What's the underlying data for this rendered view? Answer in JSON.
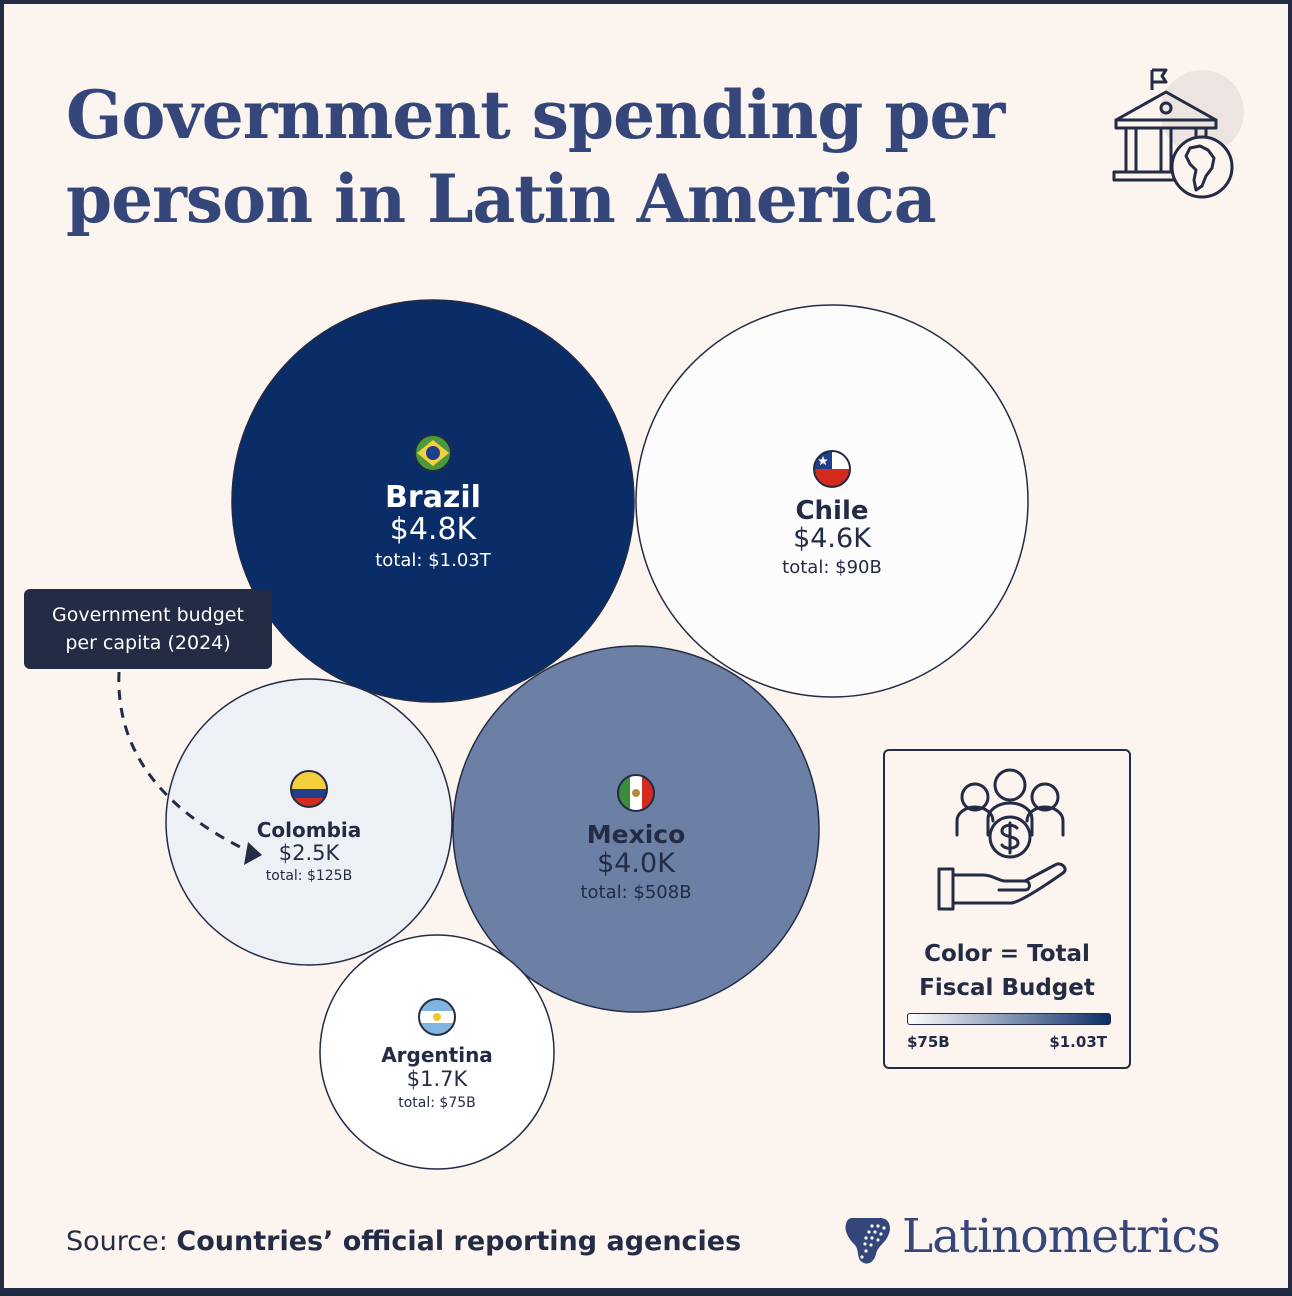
{
  "title": {
    "line1": "Government spending per",
    "line2": "person in Latin America"
  },
  "chart_data": {
    "type": "bubble",
    "title": "Government spending per person in Latin America",
    "size_measure": "Government budget per capita (2024)",
    "color_measure": "Total Fiscal Budget",
    "series": [
      {
        "country": "Brazil",
        "per_capita_usd": 4800,
        "per_capita_label": "$4.8K",
        "total_usd": 1030000000000,
        "total_label": "total: $1.03T",
        "flag": "brazil-flag-icon"
      },
      {
        "country": "Chile",
        "per_capita_usd": 4600,
        "per_capita_label": "$4.6K",
        "total_usd": 90000000000,
        "total_label": "total: $90B",
        "flag": "chile-flag-icon"
      },
      {
        "country": "Mexico",
        "per_capita_usd": 4000,
        "per_capita_label": "$4.0K",
        "total_usd": 508000000000,
        "total_label": "total: $508B",
        "flag": "mexico-flag-icon"
      },
      {
        "country": "Colombia",
        "per_capita_usd": 2500,
        "per_capita_label": "$2.5K",
        "total_usd": 125000000000,
        "total_label": "total: $125B",
        "flag": "colombia-flag-icon"
      },
      {
        "country": "Argentina",
        "per_capita_usd": 1700,
        "per_capita_label": "$1.7K",
        "total_usd": 75000000000,
        "total_label": "total: $75B",
        "flag": "argentina-flag-icon"
      }
    ],
    "color_scale": {
      "min_label": "$75B",
      "max_label": "$1.03T",
      "min_color": "#ffffff",
      "max_color": "#0a2d68"
    }
  },
  "callout": {
    "line1": "Government budget",
    "line2": "per capita (2024)"
  },
  "legend": {
    "title_line1": "Color = Total",
    "title_line2": "Fiscal Budget",
    "min_label": "$75B",
    "max_label": "$1.03T"
  },
  "source": {
    "prefix": "Source: ",
    "text": "Countries’ official reporting agencies"
  },
  "brand": {
    "name": "Latinometrics"
  },
  "colors": {
    "background": "#fbf4ef",
    "title": "#34467a",
    "dark": "#232b45",
    "brazil_fill": "#0a2d68",
    "mexico_fill": "#7fb5da"
  },
  "icons": [
    "government-building-icon",
    "hand-people-money-icon",
    "latinometrics-logo-icon"
  ]
}
